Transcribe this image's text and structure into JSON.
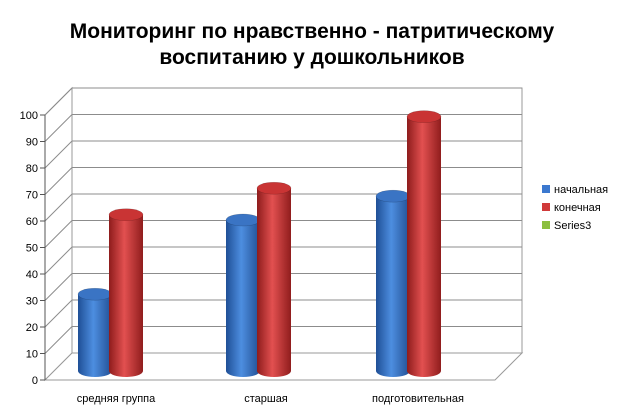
{
  "chart_data": {
    "type": "bar",
    "title_lines": [
      "Мониторинг по нравственно - патритическому",
      "воспитанию у дошкольников"
    ],
    "categories": [
      "средняя группа",
      "старшая",
      "подготовительная"
    ],
    "series": [
      {
        "name": "начальная",
        "values": [
          32,
          60,
          69
        ],
        "color": "#3b78cf"
      },
      {
        "name": "конечная",
        "values": [
          62,
          72,
          99
        ],
        "color": "#d03a3a"
      },
      {
        "name": "Series3",
        "values": [
          0,
          0,
          0
        ],
        "color": "#8cbf3f"
      }
    ],
    "yticks": [
      0,
      10,
      20,
      30,
      40,
      50,
      60,
      70,
      80,
      90,
      100
    ],
    "ylim": [
      0,
      100
    ],
    "grid": true,
    "legend_position": "right",
    "style": "3d-cylinder"
  }
}
